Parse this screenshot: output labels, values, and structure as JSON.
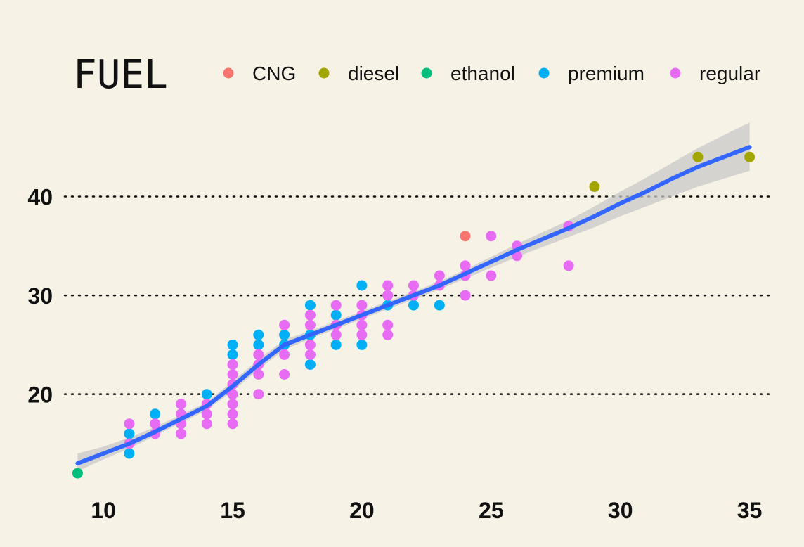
{
  "chart_data": {
    "type": "scatter",
    "title": "",
    "xlabel": "",
    "ylabel": "",
    "xlim": [
      8.5,
      35.8
    ],
    "ylim": [
      10.8,
      48.5
    ],
    "x_ticks": [
      10,
      15,
      20,
      25,
      30,
      35
    ],
    "y_ticks": [
      20,
      30,
      40
    ],
    "grid": "horizontal dotted lines at y ticks",
    "legend": {
      "title": "FUEL",
      "placement": "top",
      "entries": [
        {
          "name": "CNG",
          "color": "#f8766d"
        },
        {
          "name": "diesel",
          "color": "#a3a500"
        },
        {
          "name": "ethanol",
          "color": "#00bf7d"
        },
        {
          "name": "premium",
          "color": "#00b0f6"
        },
        {
          "name": "regular",
          "color": "#e76bf3"
        }
      ]
    },
    "series": [
      {
        "name": "CNG",
        "color": "#f8766d",
        "points": [
          [
            24,
            36
          ]
        ]
      },
      {
        "name": "diesel",
        "color": "#a3a500",
        "points": [
          [
            29,
            41
          ],
          [
            33,
            44
          ],
          [
            35,
            44
          ]
        ]
      },
      {
        "name": "ethanol",
        "color": "#00bf7d",
        "points": [
          [
            9,
            12
          ]
        ]
      },
      {
        "name": "premium",
        "color": "#00b0f6",
        "points": [
          [
            11,
            14
          ],
          [
            11,
            16
          ],
          [
            12,
            18
          ],
          [
            14,
            20
          ],
          [
            15,
            24
          ],
          [
            15,
            25
          ],
          [
            16,
            25
          ],
          [
            16,
            26
          ],
          [
            17,
            25
          ],
          [
            17,
            26
          ],
          [
            18,
            23
          ],
          [
            18,
            26
          ],
          [
            18,
            29
          ],
          [
            19,
            25
          ],
          [
            19,
            28
          ],
          [
            20,
            25
          ],
          [
            20,
            31
          ],
          [
            21,
            29
          ],
          [
            22,
            29
          ],
          [
            23,
            29
          ]
        ]
      },
      {
        "name": "regular",
        "color": "#e76bf3",
        "points": [
          [
            11,
            15
          ],
          [
            11,
            17
          ],
          [
            12,
            16
          ],
          [
            12,
            17
          ],
          [
            13,
            16
          ],
          [
            13,
            17
          ],
          [
            13,
            18
          ],
          [
            13,
            19
          ],
          [
            14,
            17
          ],
          [
            14,
            18
          ],
          [
            14,
            19
          ],
          [
            15,
            17
          ],
          [
            15,
            18
          ],
          [
            15,
            19
          ],
          [
            15,
            20
          ],
          [
            15,
            21
          ],
          [
            15,
            22
          ],
          [
            15,
            23
          ],
          [
            16,
            20
          ],
          [
            16,
            22
          ],
          [
            16,
            23
          ],
          [
            16,
            24
          ],
          [
            17,
            22
          ],
          [
            17,
            24
          ],
          [
            17,
            27
          ],
          [
            18,
            24
          ],
          [
            18,
            25
          ],
          [
            18,
            27
          ],
          [
            18,
            28
          ],
          [
            19,
            26
          ],
          [
            19,
            27
          ],
          [
            19,
            29
          ],
          [
            20,
            26
          ],
          [
            20,
            27
          ],
          [
            20,
            28
          ],
          [
            20,
            29
          ],
          [
            21,
            26
          ],
          [
            21,
            27
          ],
          [
            21,
            30
          ],
          [
            21,
            31
          ],
          [
            22,
            30
          ],
          [
            22,
            31
          ],
          [
            23,
            31
          ],
          [
            23,
            32
          ],
          [
            24,
            30
          ],
          [
            24,
            32
          ],
          [
            24,
            33
          ],
          [
            25,
            32
          ],
          [
            25,
            36
          ],
          [
            26,
            34
          ],
          [
            26,
            35
          ],
          [
            28,
            33
          ],
          [
            28,
            37
          ]
        ]
      }
    ],
    "smooth": {
      "color": "#3366ff",
      "band_color": "#c8c8c8",
      "x": [
        9,
        10,
        11,
        12,
        13,
        14,
        15,
        16,
        17,
        18,
        19,
        20,
        21,
        22,
        23,
        24,
        25,
        26,
        27,
        28,
        29,
        30,
        31,
        32,
        33,
        34,
        35
      ],
      "y": [
        13.0,
        14.0,
        15.0,
        16.2,
        17.5,
        18.8,
        20.8,
        23.0,
        25.0,
        26.0,
        27.0,
        28.0,
        29.0,
        30.0,
        31.0,
        32.2,
        33.4,
        34.6,
        35.7,
        36.8,
        38.0,
        39.3,
        40.5,
        41.8,
        43.0,
        44.0,
        45.0
      ],
      "lower": [
        12.2,
        13.4,
        14.5,
        15.8,
        17.1,
        18.4,
        20.3,
        22.5,
        24.5,
        25.6,
        26.6,
        27.6,
        28.6,
        29.6,
        30.6,
        31.7,
        32.8,
        33.9,
        34.9,
        35.9,
        36.9,
        38.0,
        39.0,
        40.0,
        41.0,
        41.8,
        42.6
      ],
      "upper": [
        14.0,
        14.7,
        15.6,
        16.7,
        17.9,
        19.2,
        21.3,
        23.5,
        25.5,
        26.4,
        27.4,
        28.4,
        29.4,
        30.4,
        31.4,
        32.6,
        33.9,
        35.2,
        36.4,
        37.6,
        39.0,
        40.5,
        41.9,
        43.4,
        44.9,
        46.2,
        47.5
      ]
    }
  }
}
